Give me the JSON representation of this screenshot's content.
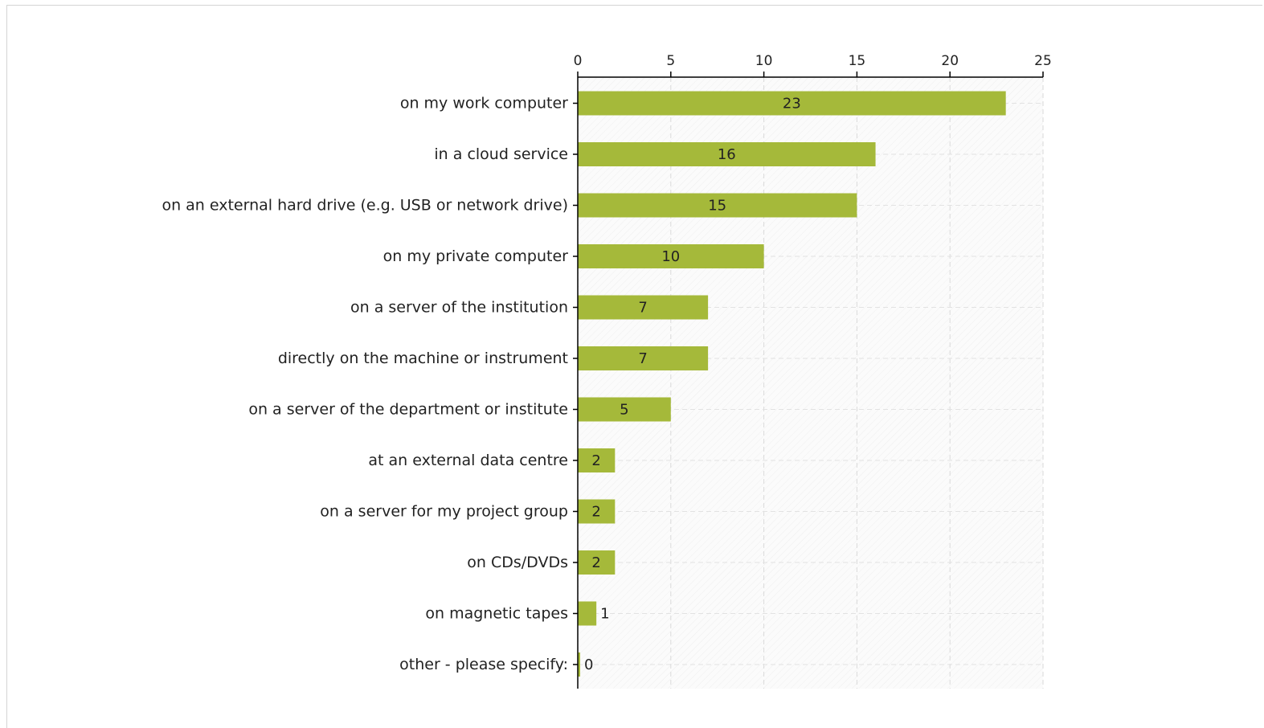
{
  "chart_data": {
    "type": "bar",
    "orientation": "horizontal",
    "categories": [
      "on my work computer",
      "in a cloud service",
      "on an external hard drive (e.g. USB or network drive)",
      "on my private computer",
      "on a server of the institution",
      "directly on the machine or instrument",
      "on a server of the department or institute",
      "at an external data centre",
      "on a server for my project group",
      "on CDs/DVDs",
      "on magnetic tapes",
      "other - please specify:"
    ],
    "values": [
      23,
      16,
      15,
      10,
      7,
      7,
      5,
      2,
      2,
      2,
      1,
      0
    ],
    "xlim": [
      0,
      25
    ],
    "xticks": [
      0,
      5,
      10,
      15,
      20,
      25
    ],
    "x_axis_position": "top",
    "grid": true,
    "legend": "none",
    "bar_color": "#a5b93a",
    "data_labels": true
  }
}
